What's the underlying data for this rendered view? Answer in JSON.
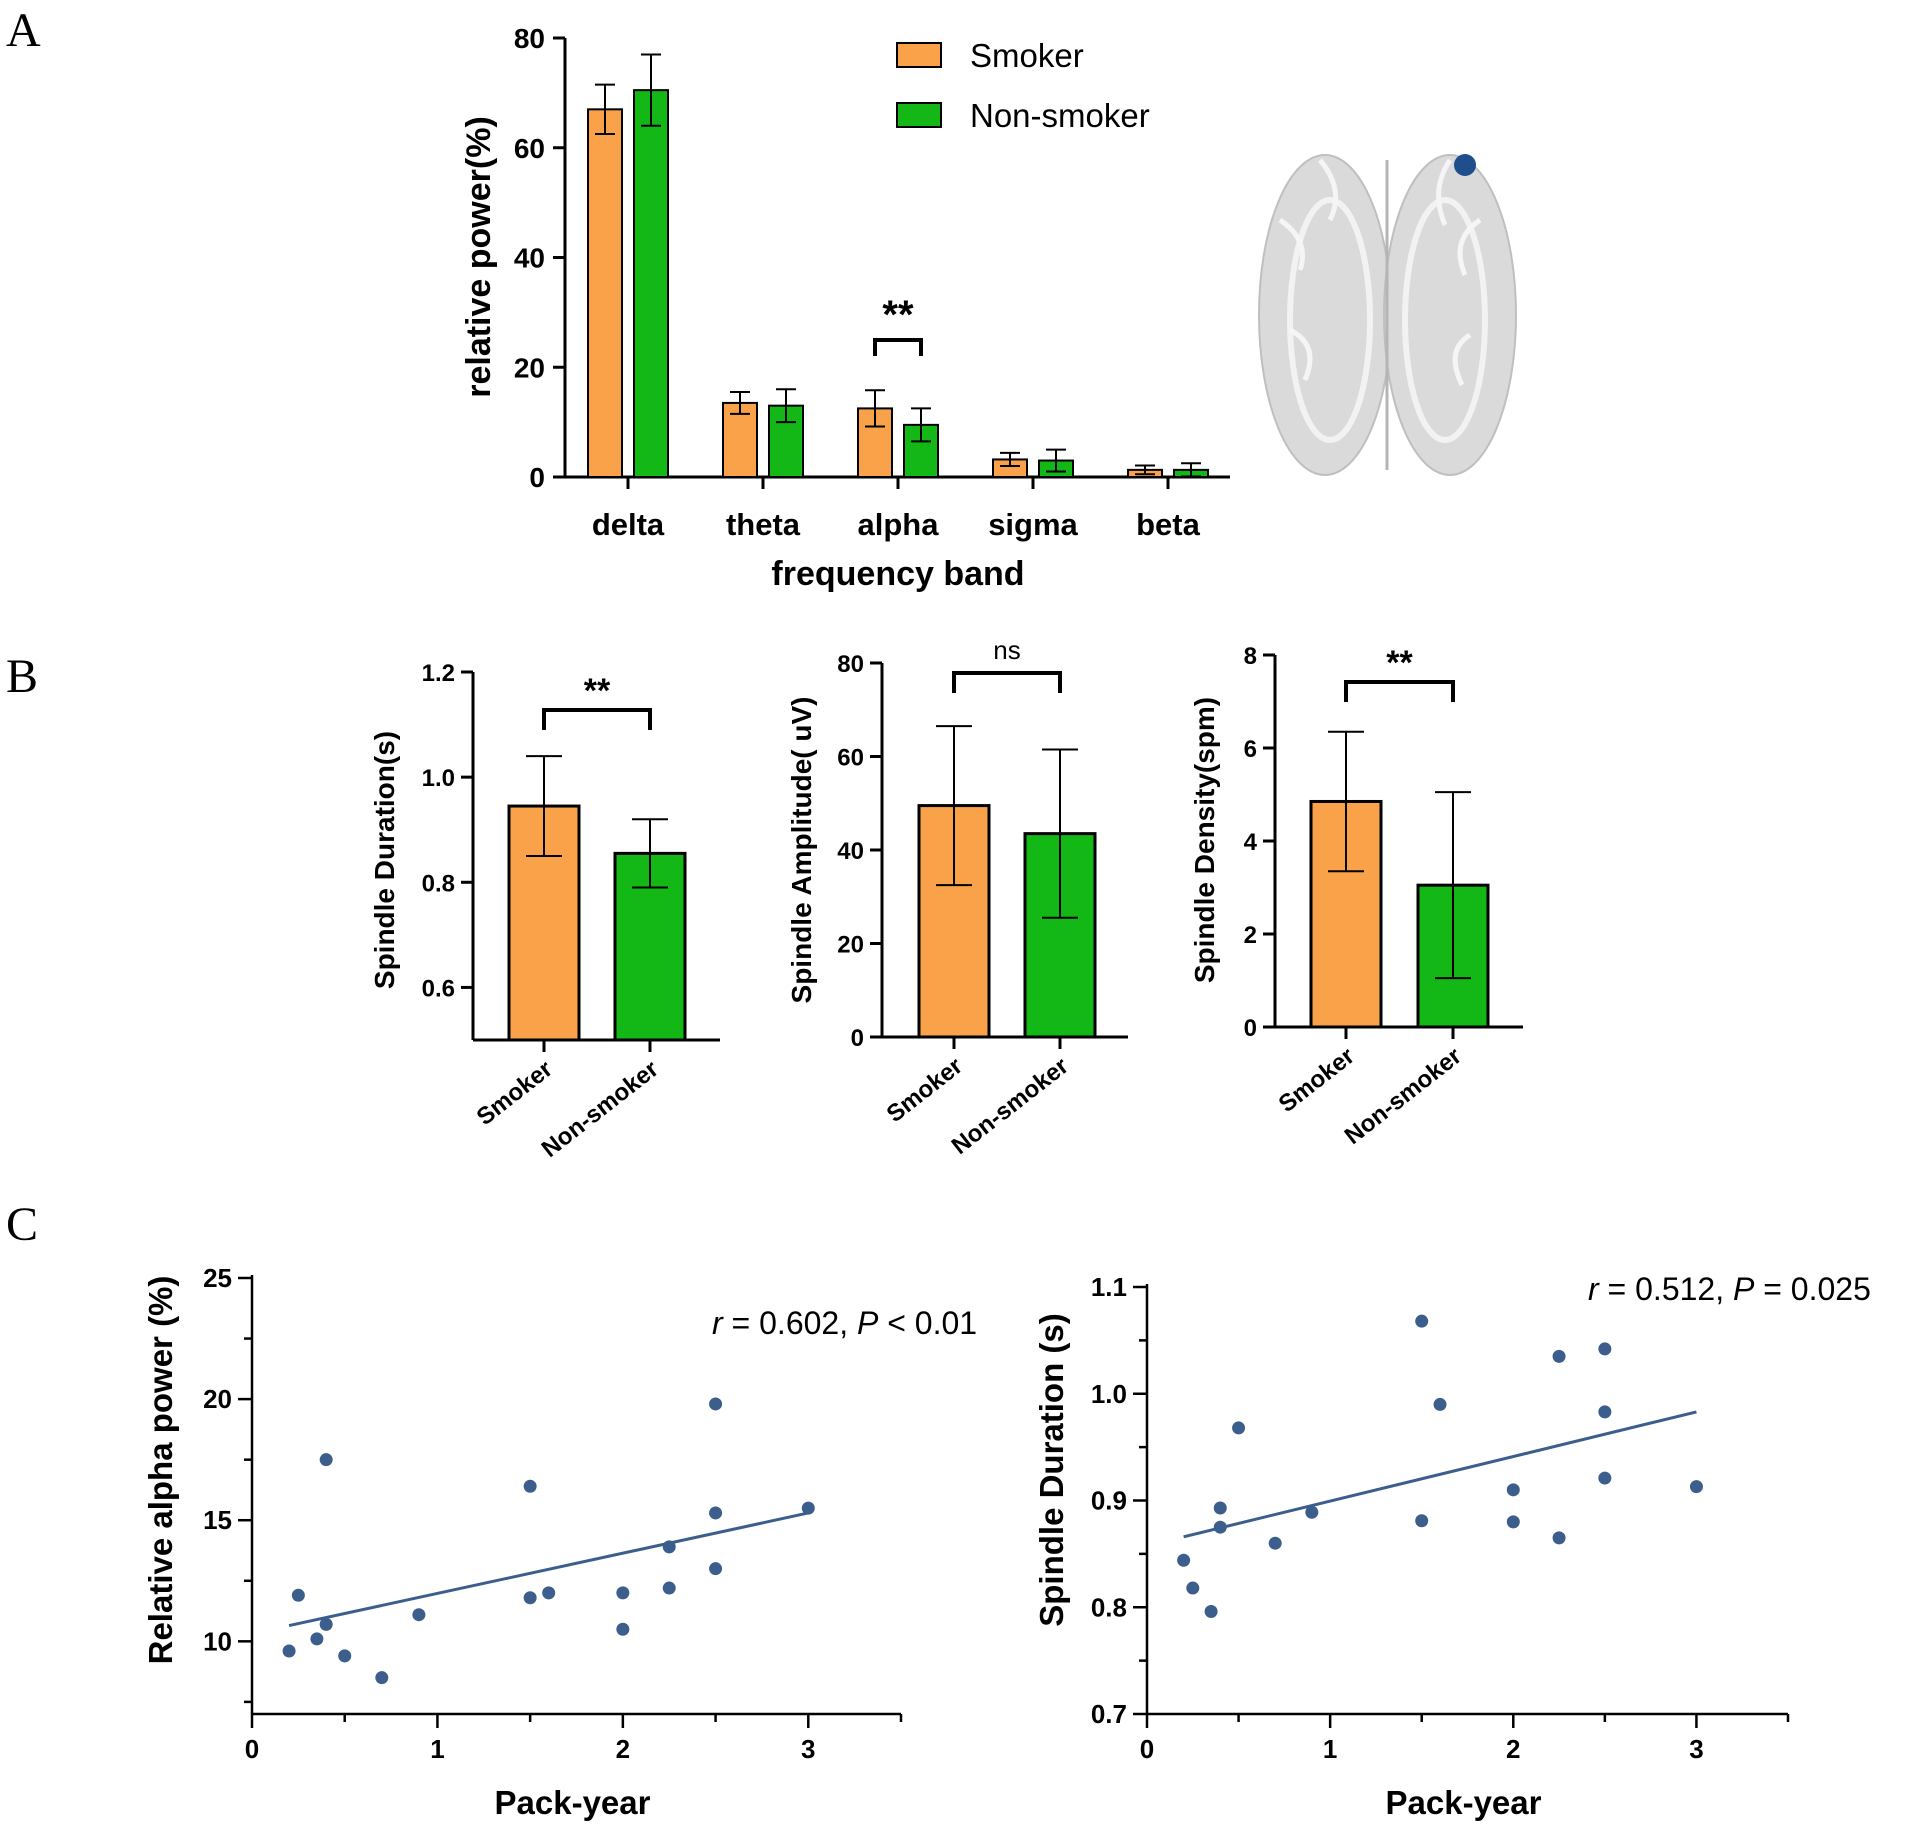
{
  "colors": {
    "smoker": "#F9A24A",
    "nonsmoker": "#13B716",
    "point": "#3B5E8C",
    "line": "#3B5E8C",
    "brain": "#D9D9D9",
    "brain_dot": "#1F4E8C"
  },
  "panels": {
    "a": "A",
    "b": "B",
    "c": "C"
  },
  "chart_data": [
    {
      "id": "A",
      "type": "bar",
      "title": "",
      "xlabel": "frequency band",
      "ylabel": "relative  power(%)",
      "ylim": [
        0,
        80
      ],
      "yticks": [
        0,
        20,
        40,
        60,
        80
      ],
      "categories": [
        "delta",
        "theta",
        "alpha",
        "sigma",
        "beta"
      ],
      "series": [
        {
          "name": "Smoker",
          "color_key": "smoker",
          "values": [
            67,
            13.5,
            12.5,
            3.2,
            1.3
          ],
          "errors": [
            4.5,
            2,
            3.3,
            1.2,
            0.8
          ]
        },
        {
          "name": "Non-smoker",
          "color_key": "nonsmoker",
          "values": [
            70.5,
            13,
            9.5,
            3,
            1.3
          ],
          "errors": [
            6.5,
            3,
            3,
            2,
            1.2
          ]
        }
      ],
      "legend": [
        "Smoker",
        "Non-smoker"
      ],
      "legend_position": "top-right",
      "annotations": [
        {
          "category": "alpha",
          "text": "**"
        }
      ],
      "inset": "brain-top-view"
    },
    {
      "id": "B1",
      "type": "bar",
      "ylabel": "Spindle Duration(s)",
      "ylim": [
        0.5,
        1.2
      ],
      "yticks": [
        0.6,
        0.8,
        1.0,
        1.2
      ],
      "ytick_labels": [
        "0.6",
        "0.8",
        "1.0",
        "1.2"
      ],
      "categories": [
        "Smoker",
        "Non-smoker"
      ],
      "values": [
        0.945,
        0.855
      ],
      "errors": [
        0.095,
        0.065
      ],
      "significance": "**"
    },
    {
      "id": "B2",
      "type": "bar",
      "ylabel": "Spindle Amplitude( uV)",
      "ylim": [
        0,
        80
      ],
      "yticks": [
        0,
        20,
        40,
        60,
        80
      ],
      "ytick_labels": [
        "0",
        "20",
        "40",
        "60",
        "80"
      ],
      "categories": [
        "Smoker",
        "Non-smoker"
      ],
      "values": [
        49.5,
        43.5
      ],
      "errors": [
        17,
        18
      ],
      "significance": "ns"
    },
    {
      "id": "B3",
      "type": "bar",
      "ylabel": "Spindle Density(spm)",
      "ylim": [
        0,
        8
      ],
      "yticks": [
        0,
        2,
        4,
        6,
        8
      ],
      "ytick_labels": [
        "0",
        "2",
        "4",
        "6",
        "8"
      ],
      "categories": [
        "Smoker",
        "Non-smoker"
      ],
      "values": [
        4.85,
        3.05
      ],
      "errors": [
        1.5,
        2.0
      ],
      "significance": "**"
    },
    {
      "id": "C1",
      "type": "scatter",
      "xlabel": "Pack-year",
      "ylabel": "Relative alpha power (%)",
      "xlim": [
        0,
        3.5
      ],
      "ylim": [
        7,
        25
      ],
      "xticks": [
        0,
        1,
        2,
        3
      ],
      "yticks": [
        10,
        15,
        20,
        25
      ],
      "annotation": {
        "r_label": "r",
        "r_value": " = 0.602, ",
        "p_label": "P",
        "p_value": " < 0.01"
      },
      "points": [
        [
          0.2,
          9.6
        ],
        [
          0.25,
          11.9
        ],
        [
          0.35,
          10.1
        ],
        [
          0.4,
          10.7
        ],
        [
          0.4,
          17.5
        ],
        [
          0.5,
          9.4
        ],
        [
          0.7,
          8.5
        ],
        [
          0.9,
          11.1
        ],
        [
          1.5,
          16.4
        ],
        [
          1.5,
          11.8
        ],
        [
          1.6,
          12.0
        ],
        [
          2.0,
          12.0
        ],
        [
          2.0,
          10.5
        ],
        [
          2.25,
          13.9
        ],
        [
          2.25,
          12.2
        ],
        [
          2.5,
          19.8
        ],
        [
          2.5,
          15.3
        ],
        [
          2.5,
          13.0
        ],
        [
          3.0,
          15.5
        ]
      ],
      "fit": [
        [
          0.2,
          10.65
        ],
        [
          3.0,
          15.3
        ]
      ]
    },
    {
      "id": "C2",
      "type": "scatter",
      "xlabel": "Pack-year",
      "ylabel": "Spindle Duration (s)",
      "xlim": [
        0,
        3.5
      ],
      "ylim": [
        0.7,
        1.1
      ],
      "xticks": [
        0,
        1,
        2,
        3
      ],
      "yticks": [
        0.7,
        0.8,
        0.9,
        1.0,
        1.1
      ],
      "ytick_labels": [
        "0.7",
        "0.8",
        "0.9",
        "1.0",
        "1.1"
      ],
      "annotation": {
        "r_label": "r",
        "r_value": " = 0.512, ",
        "p_label": "P",
        "p_value": " = 0.025"
      },
      "points": [
        [
          0.2,
          0.844
        ],
        [
          0.25,
          0.818
        ],
        [
          0.35,
          0.796
        ],
        [
          0.4,
          0.893
        ],
        [
          0.4,
          0.875
        ],
        [
          0.5,
          0.968
        ],
        [
          0.7,
          0.86
        ],
        [
          0.9,
          0.889
        ],
        [
          1.5,
          1.068
        ],
        [
          1.5,
          0.881
        ],
        [
          1.6,
          0.99
        ],
        [
          2.0,
          0.91
        ],
        [
          2.0,
          0.88
        ],
        [
          2.25,
          1.035
        ],
        [
          2.25,
          0.865
        ],
        [
          2.5,
          1.042
        ],
        [
          2.5,
          0.983
        ],
        [
          2.5,
          0.921
        ],
        [
          3.0,
          0.913
        ]
      ],
      "fit": [
        [
          0.2,
          0.866
        ],
        [
          3.0,
          0.983
        ]
      ]
    }
  ]
}
